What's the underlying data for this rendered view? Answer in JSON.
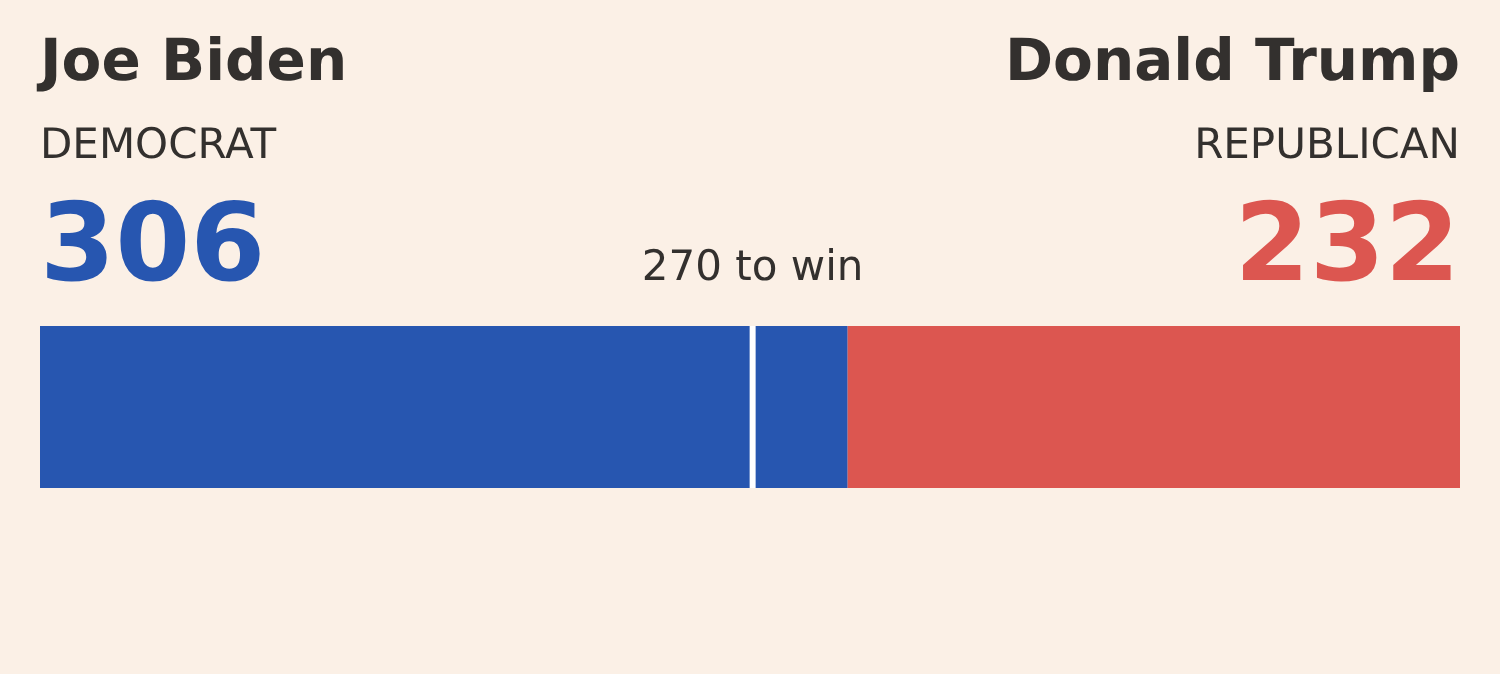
{
  "chart_data": {
    "type": "bar",
    "orientation": "horizontal",
    "stacked": true,
    "categories": [
      null
    ],
    "series": [
      {
        "color": "#2756b0",
        "values": [
          306
        ],
        "value_labels": [
          "306"
        ]
      },
      {
        "color": "#dc5650",
        "values": [
          232
        ],
        "value_labels": [
          "232"
        ]
      }
    ],
    "annotations": [
      "Joe Biden",
      "DEMOCRAT",
      "Donald Trump",
      "REPUBLICAN"
    ],
    "xlim": [
      0,
      538
    ],
    "tick_labels": false,
    "ref_lines": [
      {
        "axis": "x",
        "value": 270,
        "label": "270 to win",
        "color": "#ffffff"
      }
    ]
  }
}
